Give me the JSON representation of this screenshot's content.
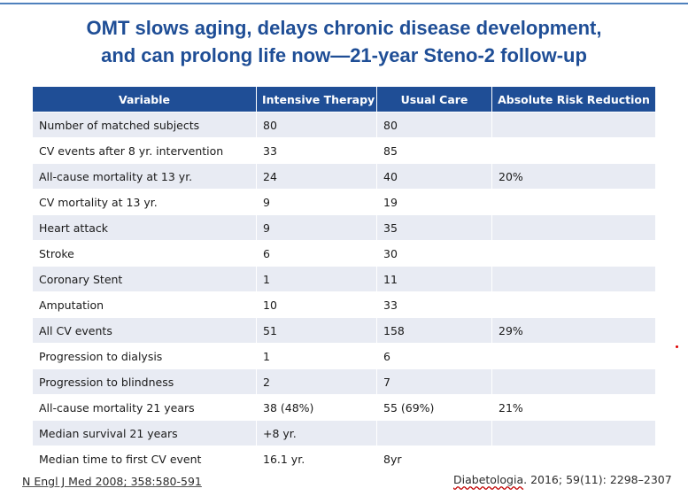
{
  "title": {
    "line1": "OMT slows aging, delays chronic disease development,",
    "line2": "and can prolong life now—21-year Steno-2 follow-up"
  },
  "table": {
    "headers": [
      "Variable",
      "Intensive  Therapy",
      "Usual Care",
      "Absolute Risk Reduction"
    ],
    "rows": [
      [
        "Number of matched subjects",
        "80",
        "80",
        ""
      ],
      [
        "CV events after 8 yr. intervention",
        "33",
        "85",
        ""
      ],
      [
        "All-cause mortality at 13 yr.",
        "24",
        "40",
        "20%"
      ],
      [
        "CV mortality at 13 yr.",
        "9",
        "19",
        ""
      ],
      [
        "Heart attack",
        "9",
        "35",
        ""
      ],
      [
        "Stroke",
        "6",
        "30",
        ""
      ],
      [
        "Coronary Stent",
        "1",
        "11",
        ""
      ],
      [
        "Amputation",
        "10",
        "33",
        ""
      ],
      [
        "All CV events",
        "51",
        "158",
        "29%"
      ],
      [
        "Progression to dialysis",
        "1",
        "6",
        ""
      ],
      [
        "Progression to blindness",
        "2",
        "7",
        ""
      ],
      [
        "All-cause mortality 21 years",
        "38 (48%)",
        "55 (69%)",
        "21%"
      ],
      [
        "Median survival 21 years",
        "+8 yr.",
        "",
        ""
      ],
      [
        "Median time to first CV event",
        "16.1 yr.",
        "8yr",
        ""
      ]
    ]
  },
  "citations": {
    "left": "N Engl J Med 2008; 358:580-591",
    "right_journal": "Diabetologia",
    "right_rest": ". 2016; 59(11): 2298–2307"
  }
}
